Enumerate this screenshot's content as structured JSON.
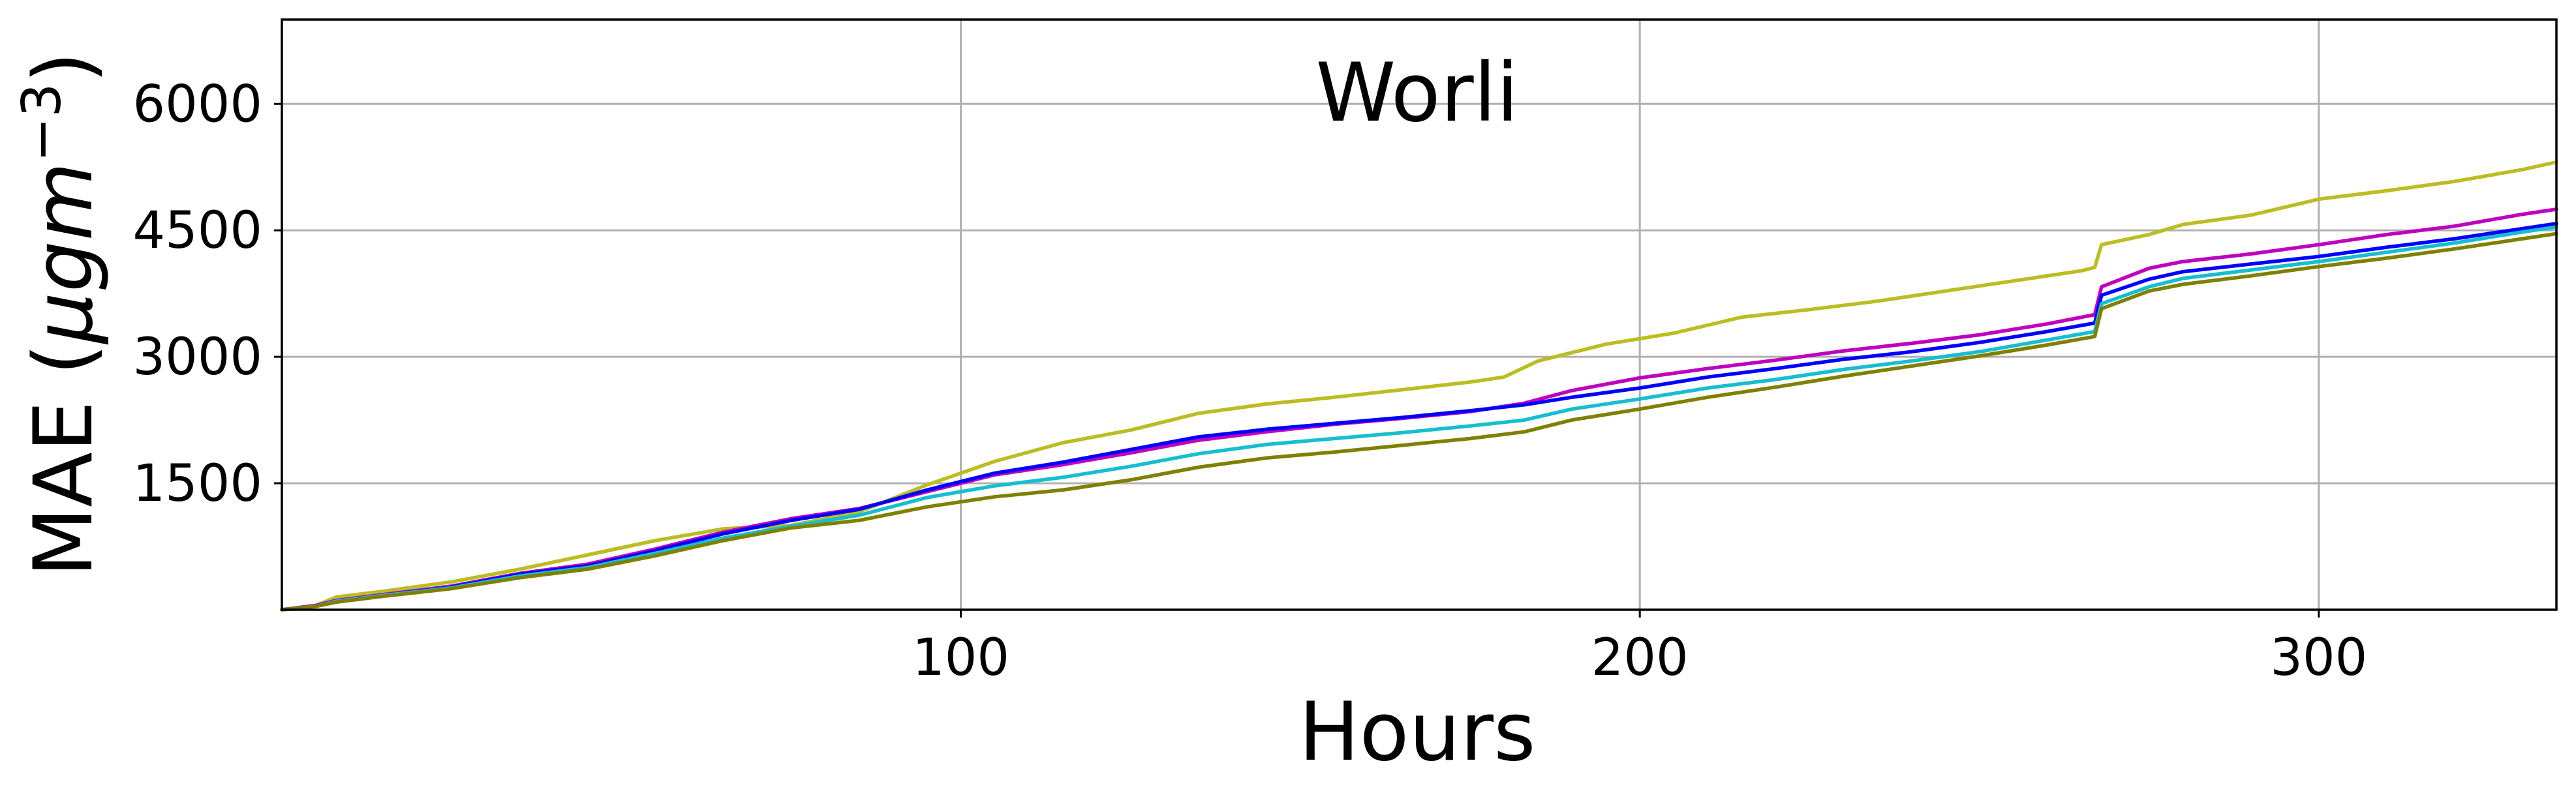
{
  "chart_data": {
    "type": "line",
    "title": "Worli",
    "xlabel": "Hours",
    "ylabel_main": "MAE (",
    "ylabel_mu": "μgm",
    "ylabel_exp": "−3",
    "ylabel_close": ")",
    "xlim": [
      0,
      335
    ],
    "ylim": [
      0,
      7000
    ],
    "xticks": [
      100,
      200,
      300
    ],
    "xtick_labels": [
      "100",
      "200",
      "300"
    ],
    "yticks": [
      1500,
      3000,
      4500,
      6000
    ],
    "ytick_labels": [
      "1500",
      "3000",
      "4500",
      "6000"
    ],
    "grid": true,
    "series": [
      {
        "color": "#bcbd22",
        "points": [
          [
            0,
            0
          ],
          [
            5,
            50
          ],
          [
            8,
            150
          ],
          [
            15,
            220
          ],
          [
            25,
            330
          ],
          [
            35,
            480
          ],
          [
            45,
            650
          ],
          [
            55,
            820
          ],
          [
            65,
            960
          ],
          [
            75,
            1000
          ],
          [
            85,
            1160
          ],
          [
            95,
            1480
          ],
          [
            105,
            1760
          ],
          [
            115,
            1980
          ],
          [
            125,
            2130
          ],
          [
            135,
            2330
          ],
          [
            145,
            2440
          ],
          [
            155,
            2520
          ],
          [
            165,
            2610
          ],
          [
            175,
            2700
          ],
          [
            180,
            2760
          ],
          [
            185,
            2950
          ],
          [
            190,
            3050
          ],
          [
            195,
            3150
          ],
          [
            205,
            3280
          ],
          [
            215,
            3470
          ],
          [
            225,
            3560
          ],
          [
            235,
            3660
          ],
          [
            245,
            3780
          ],
          [
            255,
            3900
          ],
          [
            265,
            4020
          ],
          [
            267,
            4060
          ],
          [
            268,
            4330
          ],
          [
            275,
            4450
          ],
          [
            280,
            4570
          ],
          [
            290,
            4680
          ],
          [
            300,
            4870
          ],
          [
            310,
            4970
          ],
          [
            320,
            5080
          ],
          [
            330,
            5220
          ],
          [
            335,
            5310
          ]
        ]
      },
      {
        "color": "#bf00bf",
        "points": [
          [
            0,
            0
          ],
          [
            5,
            50
          ],
          [
            8,
            110
          ],
          [
            15,
            180
          ],
          [
            25,
            280
          ],
          [
            35,
            430
          ],
          [
            45,
            540
          ],
          [
            55,
            720
          ],
          [
            65,
            920
          ],
          [
            75,
            1080
          ],
          [
            85,
            1200
          ],
          [
            95,
            1400
          ],
          [
            105,
            1600
          ],
          [
            115,
            1720
          ],
          [
            125,
            1860
          ],
          [
            135,
            2010
          ],
          [
            145,
            2110
          ],
          [
            155,
            2200
          ],
          [
            165,
            2270
          ],
          [
            175,
            2350
          ],
          [
            183,
            2450
          ],
          [
            190,
            2600
          ],
          [
            200,
            2750
          ],
          [
            210,
            2860
          ],
          [
            220,
            2960
          ],
          [
            230,
            3070
          ],
          [
            240,
            3160
          ],
          [
            250,
            3260
          ],
          [
            260,
            3390
          ],
          [
            267,
            3500
          ],
          [
            268,
            3830
          ],
          [
            275,
            4050
          ],
          [
            280,
            4130
          ],
          [
            290,
            4220
          ],
          [
            300,
            4330
          ],
          [
            310,
            4450
          ],
          [
            320,
            4550
          ],
          [
            330,
            4690
          ],
          [
            335,
            4750
          ]
        ]
      },
      {
        "color": "#0000ff",
        "points": [
          [
            0,
            0
          ],
          [
            5,
            40
          ],
          [
            8,
            100
          ],
          [
            15,
            170
          ],
          [
            25,
            270
          ],
          [
            35,
            420
          ],
          [
            45,
            520
          ],
          [
            55,
            700
          ],
          [
            65,
            900
          ],
          [
            75,
            1060
          ],
          [
            85,
            1190
          ],
          [
            95,
            1420
          ],
          [
            105,
            1620
          ],
          [
            115,
            1750
          ],
          [
            125,
            1900
          ],
          [
            135,
            2050
          ],
          [
            145,
            2140
          ],
          [
            155,
            2210
          ],
          [
            165,
            2280
          ],
          [
            175,
            2360
          ],
          [
            183,
            2430
          ],
          [
            190,
            2520
          ],
          [
            200,
            2630
          ],
          [
            210,
            2760
          ],
          [
            220,
            2860
          ],
          [
            230,
            2970
          ],
          [
            240,
            3060
          ],
          [
            250,
            3170
          ],
          [
            260,
            3300
          ],
          [
            267,
            3400
          ],
          [
            268,
            3730
          ],
          [
            275,
            3920
          ],
          [
            280,
            4010
          ],
          [
            290,
            4100
          ],
          [
            300,
            4190
          ],
          [
            310,
            4300
          ],
          [
            320,
            4400
          ],
          [
            330,
            4520
          ],
          [
            335,
            4580
          ]
        ]
      },
      {
        "color": "#17becf",
        "points": [
          [
            0,
            0
          ],
          [
            5,
            40
          ],
          [
            8,
            100
          ],
          [
            15,
            170
          ],
          [
            25,
            260
          ],
          [
            35,
            400
          ],
          [
            45,
            500
          ],
          [
            55,
            670
          ],
          [
            65,
            850
          ],
          [
            75,
            990
          ],
          [
            85,
            1120
          ],
          [
            95,
            1330
          ],
          [
            105,
            1470
          ],
          [
            115,
            1570
          ],
          [
            125,
            1700
          ],
          [
            135,
            1850
          ],
          [
            145,
            1960
          ],
          [
            155,
            2030
          ],
          [
            165,
            2100
          ],
          [
            175,
            2180
          ],
          [
            183,
            2250
          ],
          [
            190,
            2380
          ],
          [
            200,
            2500
          ],
          [
            210,
            2630
          ],
          [
            220,
            2730
          ],
          [
            230,
            2850
          ],
          [
            240,
            2950
          ],
          [
            250,
            3060
          ],
          [
            260,
            3200
          ],
          [
            267,
            3300
          ],
          [
            268,
            3630
          ],
          [
            275,
            3830
          ],
          [
            280,
            3930
          ],
          [
            290,
            4030
          ],
          [
            300,
            4130
          ],
          [
            310,
            4240
          ],
          [
            320,
            4350
          ],
          [
            330,
            4480
          ],
          [
            335,
            4540
          ]
        ]
      },
      {
        "color": "#808000",
        "points": [
          [
            0,
            0
          ],
          [
            5,
            40
          ],
          [
            8,
            90
          ],
          [
            15,
            160
          ],
          [
            25,
            250
          ],
          [
            35,
            380
          ],
          [
            45,
            480
          ],
          [
            55,
            640
          ],
          [
            65,
            820
          ],
          [
            75,
            970
          ],
          [
            85,
            1060
          ],
          [
            95,
            1220
          ],
          [
            105,
            1340
          ],
          [
            115,
            1420
          ],
          [
            125,
            1540
          ],
          [
            135,
            1690
          ],
          [
            145,
            1800
          ],
          [
            155,
            1870
          ],
          [
            165,
            1950
          ],
          [
            175,
            2030
          ],
          [
            183,
            2110
          ],
          [
            190,
            2250
          ],
          [
            200,
            2380
          ],
          [
            210,
            2520
          ],
          [
            220,
            2640
          ],
          [
            230,
            2770
          ],
          [
            240,
            2890
          ],
          [
            250,
            3010
          ],
          [
            260,
            3140
          ],
          [
            267,
            3240
          ],
          [
            268,
            3570
          ],
          [
            275,
            3780
          ],
          [
            280,
            3860
          ],
          [
            290,
            3960
          ],
          [
            300,
            4070
          ],
          [
            310,
            4170
          ],
          [
            320,
            4280
          ],
          [
            330,
            4400
          ],
          [
            335,
            4460
          ]
        ]
      }
    ]
  }
}
